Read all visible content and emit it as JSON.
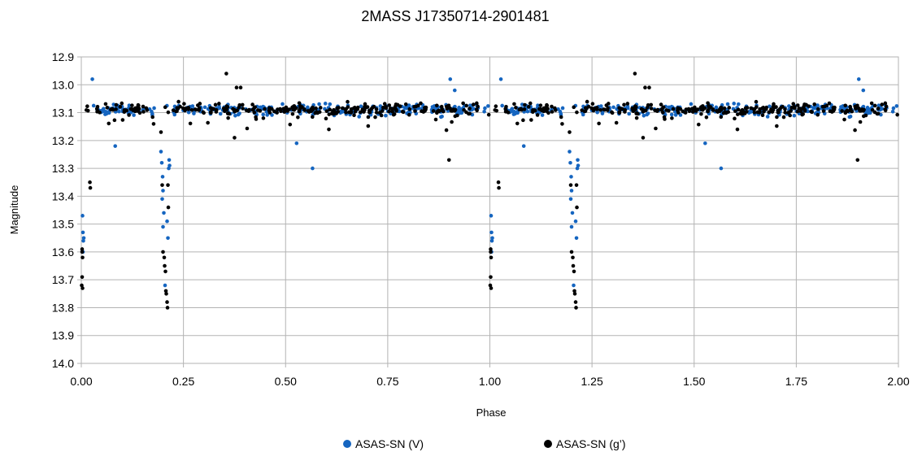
{
  "chart_data": {
    "type": "scatter",
    "title": "2MASS J17350714-2901481",
    "xlabel": "Phase",
    "ylabel": "Magnitude",
    "xlim": [
      0,
      2
    ],
    "ylim": [
      12.9,
      14.0
    ],
    "y_inverted": true,
    "x_ticks": [
      "0.00",
      "0.25",
      "0.50",
      "0.75",
      "1.00",
      "1.25",
      "1.50",
      "1.75",
      "2.00"
    ],
    "y_ticks": [
      "12.9",
      "13.0",
      "13.1",
      "13.2",
      "13.3",
      "13.4",
      "13.5",
      "13.6",
      "13.7",
      "13.8",
      "13.9",
      "14.0"
    ],
    "grid": true,
    "legend_position": "bottom",
    "baseline_magnitude": 13.09,
    "series": [
      {
        "name": "ASAS-SN (V)",
        "color": "#1565c0",
        "eclipse_points": [
          [
            0.003,
            13.47
          ],
          [
            0.004,
            13.53
          ],
          [
            0.005,
            13.56
          ],
          [
            0.006,
            13.55
          ],
          [
            0.004,
            13.6
          ],
          [
            0.195,
            13.24
          ],
          [
            0.197,
            13.28
          ],
          [
            0.199,
            13.33
          ],
          [
            0.2,
            13.38
          ],
          [
            0.198,
            13.41
          ],
          [
            0.202,
            13.46
          ],
          [
            0.2,
            13.51
          ],
          [
            0.205,
            13.72
          ],
          [
            0.21,
            13.49
          ],
          [
            0.212,
            13.55
          ],
          [
            0.214,
            13.3
          ],
          [
            0.215,
            13.27
          ],
          [
            0.216,
            13.29
          ],
          [
            0.083,
            13.22
          ],
          [
            0.027,
            12.98
          ],
          [
            0.903,
            12.98
          ],
          [
            0.914,
            13.02
          ],
          [
            0.527,
            13.21
          ],
          [
            0.566,
            13.3
          ]
        ]
      },
      {
        "name": "ASAS-SN (g’)",
        "color": "#000000",
        "eclipse_points": [
          [
            0.001,
            13.72
          ],
          [
            0.002,
            13.69
          ],
          [
            0.003,
            13.73
          ],
          [
            0.002,
            13.6
          ],
          [
            0.003,
            13.62
          ],
          [
            0.002,
            13.59
          ],
          [
            0.021,
            13.35
          ],
          [
            0.022,
            13.37
          ],
          [
            0.195,
            13.17
          ],
          [
            0.198,
            13.36
          ],
          [
            0.2,
            13.6
          ],
          [
            0.203,
            13.62
          ],
          [
            0.204,
            13.65
          ],
          [
            0.206,
            13.67
          ],
          [
            0.207,
            13.74
          ],
          [
            0.208,
            13.75
          ],
          [
            0.21,
            13.78
          ],
          [
            0.211,
            13.8
          ],
          [
            0.212,
            13.36
          ],
          [
            0.213,
            13.44
          ],
          [
            0.355,
            12.96
          ],
          [
            0.375,
            13.19
          ],
          [
            0.9,
            13.27
          ],
          [
            0.38,
            13.01
          ],
          [
            0.39,
            13.01
          ]
        ]
      }
    ]
  }
}
